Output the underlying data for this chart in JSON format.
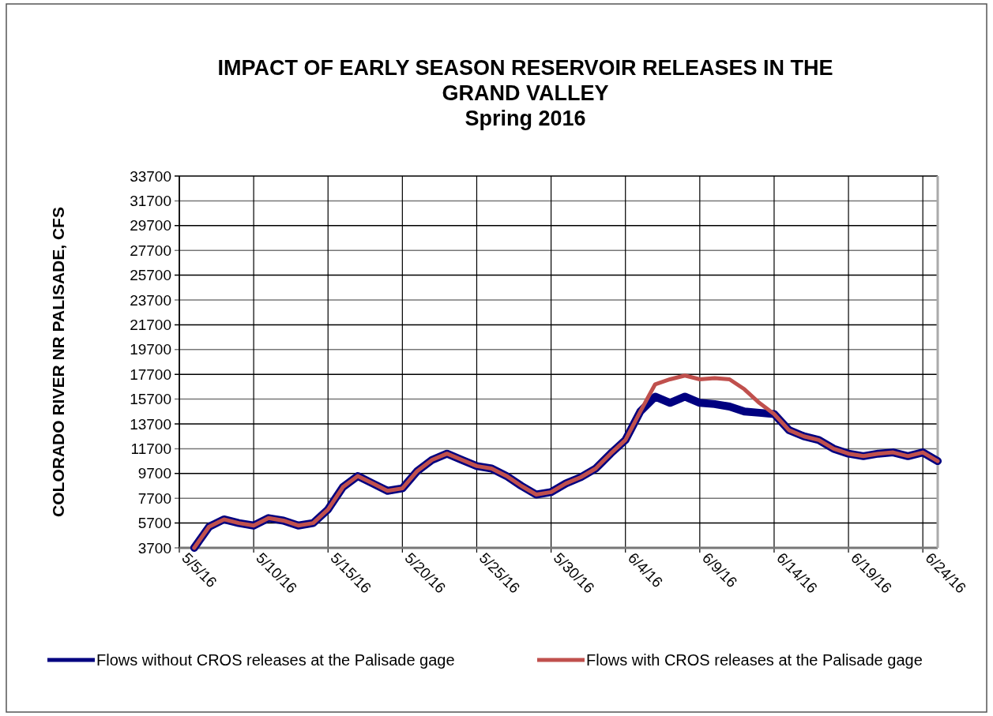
{
  "chart_data": {
    "type": "line",
    "title": "IMPACT OF EARLY SEASON RESERVOIR RELEASES IN THE\nGRAND VALLEY\nSpring 2016",
    "ylabel": "COLORADO RIVER NR PALISADE, CFS",
    "x": [
      "2016-05-06",
      "2016-05-07",
      "2016-05-08",
      "2016-05-09",
      "2016-05-10",
      "2016-05-11",
      "2016-05-12",
      "2016-05-13",
      "2016-05-14",
      "2016-05-15",
      "2016-05-16",
      "2016-05-17",
      "2016-05-18",
      "2016-05-19",
      "2016-05-20",
      "2016-05-21",
      "2016-05-22",
      "2016-05-23",
      "2016-05-24",
      "2016-05-25",
      "2016-05-26",
      "2016-05-27",
      "2016-05-28",
      "2016-05-29",
      "2016-05-30",
      "2016-05-31",
      "2016-06-01",
      "2016-06-02",
      "2016-06-03",
      "2016-06-04",
      "2016-06-05",
      "2016-06-06",
      "2016-06-07",
      "2016-06-08",
      "2016-06-09",
      "2016-06-10",
      "2016-06-11",
      "2016-06-12",
      "2016-06-13",
      "2016-06-14",
      "2016-06-15",
      "2016-06-16",
      "2016-06-17",
      "2016-06-18",
      "2016-06-19",
      "2016-06-20",
      "2016-06-21",
      "2016-06-22",
      "2016-06-23",
      "2016-06-24",
      "2016-06-25"
    ],
    "series": [
      {
        "name": "Flows without CROS releases at the Palisade gage",
        "color": "#000080",
        "values": [
          3700,
          5400,
          6000,
          5700,
          5500,
          6100,
          5900,
          5500,
          5700,
          6800,
          8600,
          9500,
          8900,
          8300,
          8500,
          9900,
          10800,
          11300,
          10800,
          10300,
          10100,
          9500,
          8700,
          8000,
          8200,
          8900,
          9400,
          10100,
          11300,
          12400,
          14700,
          15900,
          15400,
          15900,
          15400,
          15300,
          15100,
          14700,
          14600,
          14500,
          13200,
          12700,
          12400,
          11700,
          11300,
          11100,
          11300,
          11400,
          11100,
          11400,
          10700
        ]
      },
      {
        "name": "Flows with CROS releases at the Palisade gage",
        "color": "#c0504d",
        "values": [
          3700,
          5400,
          6000,
          5700,
          5500,
          6100,
          5900,
          5500,
          5700,
          6800,
          8600,
          9500,
          8900,
          8300,
          8500,
          9900,
          10800,
          11300,
          10800,
          10300,
          10100,
          9500,
          8700,
          8000,
          8200,
          8900,
          9400,
          10100,
          11300,
          12400,
          14700,
          16900,
          17300,
          17600,
          17300,
          17400,
          17300,
          16500,
          15400,
          14500,
          13200,
          12700,
          12400,
          11700,
          11300,
          11100,
          11300,
          11400,
          11100,
          11400,
          10700
        ]
      }
    ],
    "xlim": [
      "2016-05-05",
      "2016-06-25"
    ],
    "xticks": [
      {
        "value": "2016-05-05",
        "label": "5/5/16"
      },
      {
        "value": "2016-05-10",
        "label": "5/10/16"
      },
      {
        "value": "2016-05-15",
        "label": "5/15/16"
      },
      {
        "value": "2016-05-20",
        "label": "5/20/16"
      },
      {
        "value": "2016-05-25",
        "label": "5/25/16"
      },
      {
        "value": "2016-05-30",
        "label": "5/30/16"
      },
      {
        "value": "2016-06-04",
        "label": "6/4/16"
      },
      {
        "value": "2016-06-09",
        "label": "6/9/16"
      },
      {
        "value": "2016-06-14",
        "label": "6/14/16"
      },
      {
        "value": "2016-06-19",
        "label": "6/19/16"
      },
      {
        "value": "2016-06-24",
        "label": "6/24/16"
      }
    ],
    "ylim": [
      3700,
      33700
    ],
    "yticks": [
      3700,
      5700,
      7700,
      9700,
      11700,
      13700,
      15700,
      17700,
      19700,
      21700,
      23700,
      25700,
      27700,
      29700,
      31700,
      33700
    ],
    "grid": true,
    "legend": "bottom",
    "line_style": "solid",
    "marker": "none"
  }
}
